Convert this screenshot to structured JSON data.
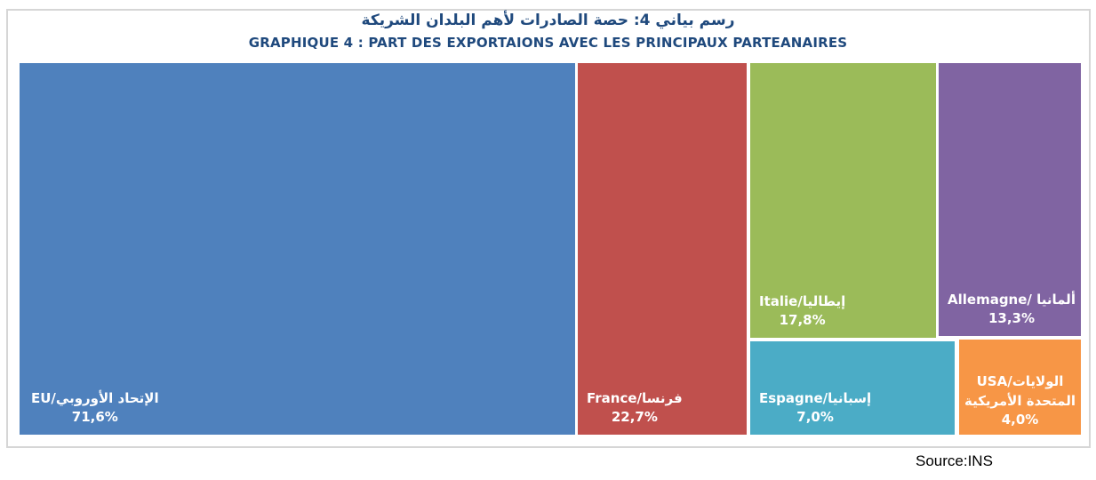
{
  "page": {
    "title_ar": "رسم بياني 4: حصة الصادرات لأهم البلدان الشريكة",
    "title_fr": "GRAPHIQUE 4 : PART DES EXPORTAIONS AVEC LES PRINCIPAUX PARTEANAIRES",
    "source": "Source:INS"
  },
  "chart_data": {
    "type": "treemap",
    "title": "GRAPHIQUE 4 : PART DES EXPORTAIONS AVEC LES PRINCIPAUX PARTEANAIRES",
    "title_arabic": "رسم بياني 4: حصة الصادرات لأهم البلدان الشريكة",
    "unit": "percent",
    "legend_position": "none",
    "source": "Source:INS",
    "tiles": [
      {
        "id": "eu",
        "name": "EU/الإتحاد الأوروبي",
        "value": 71.6,
        "value_label": "71,6%",
        "color": "#4f81bd"
      },
      {
        "id": "france",
        "name": "France/فرنسا",
        "value": 22.7,
        "value_label": "22,7%",
        "color": "#c0504d"
      },
      {
        "id": "italie",
        "name": "Italie/إيطاليا",
        "value": 17.8,
        "value_label": "17,8%",
        "color": "#9bbb59"
      },
      {
        "id": "espagne",
        "name": "Espagne/إسبانيا",
        "value": 7.0,
        "value_label": "7,0%",
        "color": "#4bacc6"
      },
      {
        "id": "allemagne",
        "name": "Allemagne/ ألمانيا",
        "value": 13.3,
        "value_label": "13,3%",
        "color": "#8064a2"
      },
      {
        "id": "usa",
        "name": "USA/الولايات المتحدة الأمريكية",
        "value": 4.0,
        "value_label": "4,0%",
        "color": "#f79646"
      }
    ],
    "colors": {
      "title_text": "#1f497d",
      "tile_label_text": "#ffffff",
      "frame_border": "#d6d6d6",
      "background": "#ffffff"
    }
  }
}
